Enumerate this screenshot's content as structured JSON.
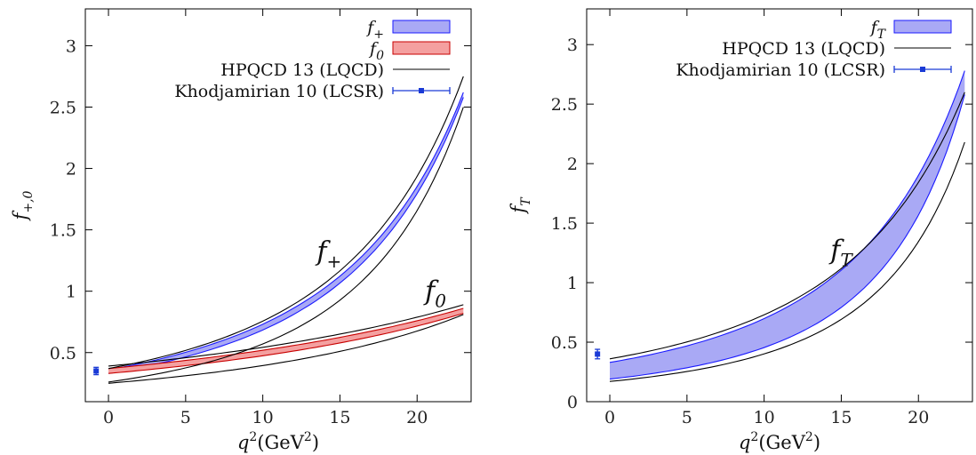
{
  "chart_data": [
    {
      "type": "line",
      "xlabel_base": "q",
      "xlabel_sup": "2",
      "xlabel_paren": "(GeV",
      "xlabel_paren_sup": "2",
      "xlabel_paren_close": ")",
      "ylabel_base": "f",
      "ylabel_sub": "+,0",
      "xlim": [
        -1.5,
        23.5
      ],
      "ylim": [
        0.1,
        3.3
      ],
      "xticks": [
        0,
        5,
        10,
        15,
        20
      ],
      "yticks": [
        0.5,
        1,
        1.5,
        2,
        2.5,
        3
      ],
      "ytick_labels": [
        "0.5",
        "1",
        "1.5",
        "2",
        "2.5",
        "3"
      ],
      "legend_position": "top-right",
      "legend": [
        {
          "base": "f",
          "sub": "+",
          "style": "band-blue"
        },
        {
          "base": "f",
          "sub": "0",
          "style": "band-red"
        },
        {
          "text": "HPQCD 13 (LQCD)",
          "style": "line-black"
        },
        {
          "text": "Khodjamirian 10 (LCSR)",
          "style": "errorbar-blue"
        }
      ],
      "annotations": [
        {
          "base": "f",
          "sub": "+",
          "x": 14.3,
          "y": 1.25
        },
        {
          "base": "f",
          "sub": "0",
          "x": 21.2,
          "y": 0.93
        }
      ],
      "series": [
        {
          "name": "f+",
          "band": true,
          "x": [
            0,
            23
          ],
          "lower_f0": 0.33,
          "lower_f1": 2.58,
          "upper_f0": 0.36,
          "upper_f1": 2.62
        },
        {
          "name": "f0",
          "band": true,
          "x": [
            0,
            23
          ],
          "lower_f0": 0.33,
          "lower_f1": 0.82,
          "upper_f0": 0.37,
          "upper_f1": 0.86
        },
        {
          "name": "HPQCD 13 (LQCD) f+ upper",
          "x": [
            0,
            23
          ],
          "f0": 0.37,
          "f1": 2.75
        },
        {
          "name": "HPQCD 13 (LQCD) f+ lower",
          "x": [
            0,
            23
          ],
          "f0": 0.26,
          "f1": 2.5
        },
        {
          "name": "HPQCD 13 (LQCD) f0 upper",
          "x": [
            0,
            23
          ],
          "f0": 0.39,
          "f1": 0.89
        },
        {
          "name": "HPQCD 13 (LQCD) f0 lower",
          "x": [
            0,
            23
          ],
          "f0": 0.25,
          "f1": 0.81
        }
      ],
      "errorbar": {
        "x": -0.8,
        "y": 0.35,
        "err": 0.03
      }
    },
    {
      "type": "line",
      "xlabel_base": "q",
      "xlabel_sup": "2",
      "xlabel_paren": "(GeV",
      "xlabel_paren_sup": "2",
      "xlabel_paren_close": ")",
      "ylabel_base": "f",
      "ylabel_sub": "T",
      "xlim": [
        -1.5,
        23.5
      ],
      "ylim": [
        0,
        3.3
      ],
      "xticks": [
        0,
        5,
        10,
        15,
        20
      ],
      "yticks": [
        0,
        0.5,
        1,
        1.5,
        2,
        2.5,
        3
      ],
      "ytick_labels": [
        "0",
        "0.5",
        "1",
        "1.5",
        "2",
        "2.5",
        "3"
      ],
      "legend_position": "top-right",
      "legend": [
        {
          "base": "f",
          "sub": "T",
          "style": "band-blue"
        },
        {
          "text": "HPQCD 13 (LQCD)",
          "style": "line-black"
        },
        {
          "text": "Khodjamirian 10 (LCSR)",
          "style": "errorbar-blue"
        }
      ],
      "annotations": [
        {
          "base": "f",
          "sub": "T",
          "x": 15.0,
          "y": 1.2
        }
      ],
      "series": [
        {
          "name": "fT",
          "band": true,
          "x": [
            0,
            23
          ],
          "lower_f0": 0.19,
          "lower_f1": 2.58,
          "upper_f0": 0.33,
          "upper_f1": 2.78
        },
        {
          "name": "HPQCD 13 (LQCD) fT upper",
          "x": [
            0,
            23
          ],
          "f0": 0.36,
          "f1": 2.6
        },
        {
          "name": "HPQCD 13 (LQCD) fT lower",
          "x": [
            0,
            23
          ],
          "f0": 0.17,
          "f1": 2.18
        }
      ],
      "errorbar": {
        "x": -0.8,
        "y": 0.4,
        "err": 0.04
      }
    }
  ]
}
